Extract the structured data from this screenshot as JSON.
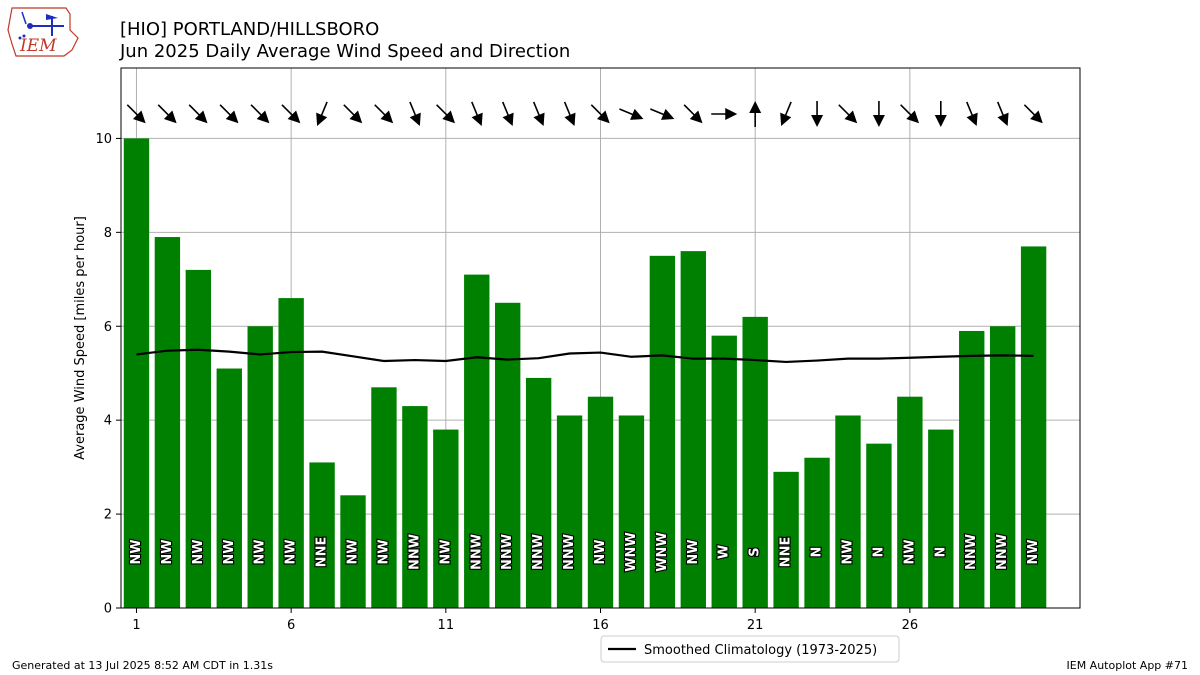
{
  "header": {
    "title_line1": "[HIO] PORTLAND/HILLSBORO",
    "title_line2": "Jun 2025 Daily Average Wind Speed and Direction"
  },
  "logo": {
    "text": "IEM"
  },
  "footer": {
    "left": "Generated at 13 Jul 2025 8:52 AM CDT in 1.31s",
    "right": "IEM Autoplot App #71"
  },
  "legend": {
    "label": "Smoothed Climatology (1973-2025)"
  },
  "colors": {
    "bar": "#008000",
    "line": "#000000",
    "grid": "#b0b0b0",
    "logo": "#c0392b",
    "logo_icon": "#1f2dbf"
  },
  "chart_data": {
    "type": "bar",
    "ylabel": "Average Wind Speed [miles per hour]",
    "xlabel": "",
    "ylim": [
      0,
      11.5
    ],
    "xlim": [
      0.5,
      31.5
    ],
    "grid": true,
    "legend_placement": "below",
    "x_ticks": [
      1,
      6,
      11,
      16,
      21,
      26
    ],
    "x_tick_labels": [
      "1",
      "6",
      "11",
      "16",
      "21",
      "26"
    ],
    "y_ticks": [
      0,
      2,
      4,
      6,
      8,
      10
    ],
    "y_tick_labels": [
      "0",
      "2",
      "4",
      "6",
      "8",
      "10"
    ],
    "days": [
      1,
      2,
      3,
      4,
      5,
      6,
      7,
      8,
      9,
      10,
      11,
      12,
      13,
      14,
      15,
      16,
      17,
      18,
      19,
      20,
      21,
      22,
      23,
      24,
      25,
      26,
      27,
      28,
      29,
      30
    ],
    "speeds": [
      10.0,
      7.9,
      7.2,
      5.1,
      6.0,
      6.6,
      3.1,
      2.4,
      4.7,
      4.3,
      3.8,
      7.1,
      6.5,
      4.9,
      4.1,
      4.5,
      4.1,
      7.5,
      7.6,
      5.8,
      6.2,
      2.9,
      3.2,
      4.1,
      3.5,
      4.5,
      3.8,
      5.9,
      6.0,
      7.7
    ],
    "directions": [
      "NW",
      "NW",
      "NW",
      "NW",
      "NW",
      "NW",
      "NNE",
      "NW",
      "NW",
      "NNW",
      "NW",
      "NNW",
      "NNW",
      "NNW",
      "NNW",
      "NW",
      "WNW",
      "WNW",
      "NW",
      "W",
      "S",
      "NNE",
      "N",
      "NW",
      "N",
      "NW",
      "N",
      "NNW",
      "NNW",
      "NW"
    ],
    "climatology": {
      "name": "Smoothed Climatology (1973-2025)",
      "values": [
        5.4,
        5.48,
        5.5,
        5.46,
        5.4,
        5.45,
        5.46,
        5.36,
        5.26,
        5.28,
        5.26,
        5.34,
        5.29,
        5.32,
        5.42,
        5.44,
        5.35,
        5.38,
        5.31,
        5.31,
        5.28,
        5.24,
        5.27,
        5.31,
        5.31,
        5.33,
        5.35,
        5.37,
        5.38,
        5.37
      ]
    }
  }
}
